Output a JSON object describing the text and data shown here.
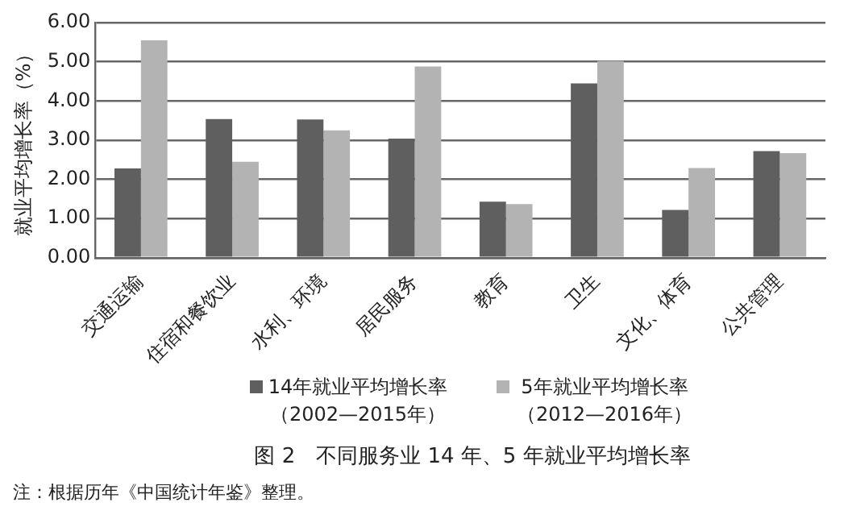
{
  "chart_data": {
    "type": "bar",
    "title": "图 2　不同服务业 14 年、5 年就业平均增长率",
    "ylabel": "就业平均增长率（%）",
    "annotations": [
      "注：根据历年《中国统计年鉴》整理。"
    ],
    "categories": [
      "交通运输",
      "住宿和餐饮业",
      "水利、环境",
      "居民服务",
      "教育",
      "卫生",
      "文化、体育",
      "公共管理"
    ],
    "series": [
      {
        "name": "14年就业平均增长率（2002—2015年）",
        "color": "#5f5f5f",
        "values": [
          2.28,
          3.54,
          3.53,
          3.04,
          1.43,
          4.45,
          1.22,
          2.72
        ]
      },
      {
        "name": "5年就业平均增长率（2012—2016年）",
        "color": "#b3b3b3",
        "values": [
          5.55,
          2.45,
          3.25,
          4.88,
          1.37,
          5.02,
          2.29,
          2.67
        ]
      }
    ],
    "ylim": [
      0,
      6
    ],
    "yticks": [
      {
        "value": 0,
        "label": "0.00"
      },
      {
        "value": 1,
        "label": "1.00"
      },
      {
        "value": 2,
        "label": "2.00"
      },
      {
        "value": 3,
        "label": "3.00"
      },
      {
        "value": 4,
        "label": "4.00"
      },
      {
        "value": 5,
        "label": "5.00"
      },
      {
        "value": 6,
        "label": "6.00"
      }
    ],
    "grid": "y",
    "legend": "bottom"
  }
}
